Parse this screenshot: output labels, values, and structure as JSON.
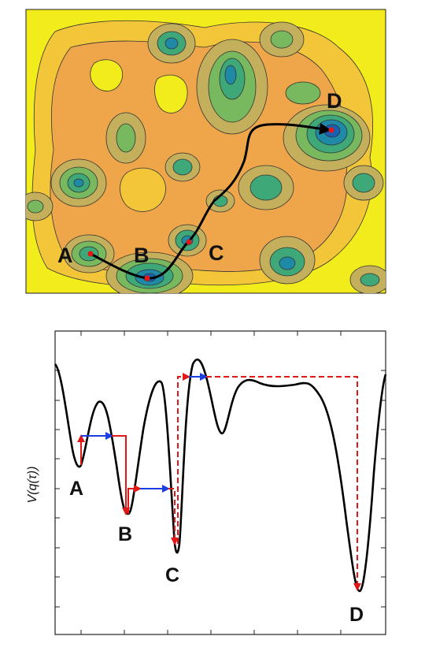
{
  "top_panel": {
    "points": [
      {
        "label": "A"
      },
      {
        "label": "B"
      },
      {
        "label": "C"
      },
      {
        "label": "D"
      }
    ],
    "colors": {
      "background": "#f2ec1c",
      "level1": "#f3c63a",
      "level2": "#efa64a",
      "level3": "#c4b05c",
      "level4": "#78b85e",
      "level5": "#3ea878",
      "level6": "#1e8aa8",
      "level7": "#1a5fb0",
      "path": "#000000",
      "point": "#e01818"
    }
  },
  "bottom_panel": {
    "ylabel": "V(q(τ))",
    "minima_labels": [
      "A",
      "B",
      "C",
      "D"
    ],
    "colors": {
      "curve": "#000000",
      "drop": "#e01818",
      "hop": "#1a3ee0"
    }
  }
}
